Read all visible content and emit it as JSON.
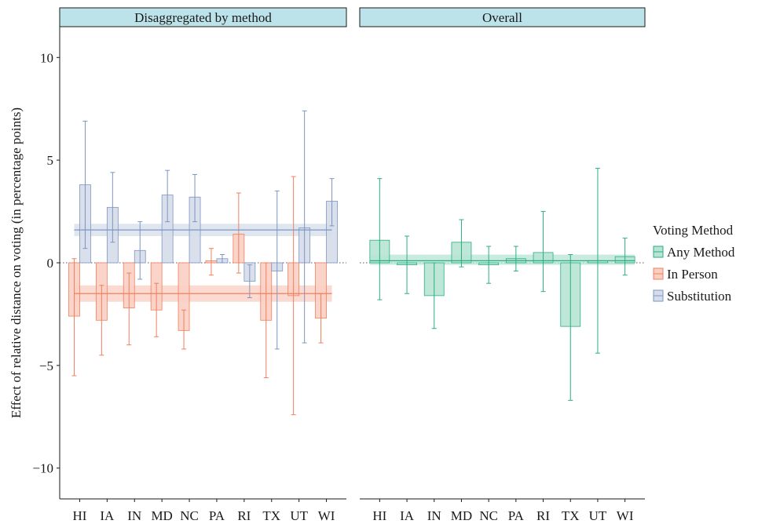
{
  "chart_data": {
    "type": "bar",
    "ylabel": "Effect of relative distance on voting (in percentage points)",
    "ylim": [
      -11.5,
      11.5
    ],
    "yticks": [
      -10,
      -5,
      0,
      5,
      10
    ],
    "ytick_labels": [
      "−10",
      "−5",
      "0",
      "5",
      "10"
    ],
    "categories": [
      "HI",
      "IA",
      "IN",
      "MD",
      "NC",
      "PA",
      "RI",
      "TX",
      "UT",
      "WI"
    ],
    "legend": {
      "title": "Voting Method",
      "position": "right",
      "entries": [
        "Any Method",
        "In Person",
        "Substitution"
      ]
    },
    "colors": {
      "Any Method": {
        "stroke": "#2BAE85",
        "fill": "#B7E4D4"
      },
      "In Person": {
        "stroke": "#F07F60",
        "fill": "#F9CFC2"
      },
      "Substitution": {
        "stroke": "#7E95C2",
        "fill": "#D5DDEA"
      }
    },
    "panels": [
      {
        "title": "Disaggregated by method",
        "series": [
          {
            "name": "In Person",
            "values": [
              -2.6,
              -2.8,
              -2.2,
              -2.3,
              -3.3,
              0.1,
              1.4,
              -2.8,
              -1.6,
              -2.7
            ],
            "ci_low": [
              -5.5,
              -4.5,
              -4.0,
              -3.6,
              -4.2,
              -0.6,
              -0.5,
              -5.6,
              -7.4,
              -3.9
            ],
            "ci_high": [
              0.2,
              -1.1,
              -0.5,
              -1.0,
              -2.3,
              0.7,
              3.4,
              0.0,
              4.2,
              -1.5
            ],
            "pooled": -1.5,
            "pooled_ci": [
              -1.9,
              -1.1
            ]
          },
          {
            "name": "Substitution",
            "values": [
              3.8,
              2.7,
              0.6,
              3.3,
              3.2,
              0.2,
              -0.9,
              -0.4,
              1.7,
              3.0
            ],
            "ci_low": [
              0.7,
              1.0,
              -0.8,
              2.0,
              2.0,
              0.0,
              -1.7,
              -4.2,
              -3.9,
              1.8
            ],
            "ci_high": [
              6.9,
              4.4,
              2.0,
              4.5,
              4.3,
              0.4,
              -0.1,
              3.5,
              7.4,
              4.1
            ],
            "pooled": 1.6,
            "pooled_ci": [
              1.3,
              1.9
            ]
          }
        ]
      },
      {
        "title": "Overall",
        "series": [
          {
            "name": "Any Method",
            "values": [
              1.1,
              -0.1,
              -1.6,
              1.0,
              -0.1,
              0.2,
              0.5,
              -3.1,
              0.1,
              0.3
            ],
            "ci_low": [
              -1.8,
              -1.5,
              -3.2,
              -0.2,
              -1.0,
              -0.4,
              -1.4,
              -6.7,
              -4.4,
              -0.6
            ],
            "ci_high": [
              4.1,
              1.3,
              0.0,
              2.1,
              0.8,
              0.8,
              2.5,
              0.4,
              4.6,
              1.2
            ],
            "pooled": 0.1,
            "pooled_ci": [
              -0.1,
              0.4
            ]
          }
        ]
      }
    ]
  }
}
